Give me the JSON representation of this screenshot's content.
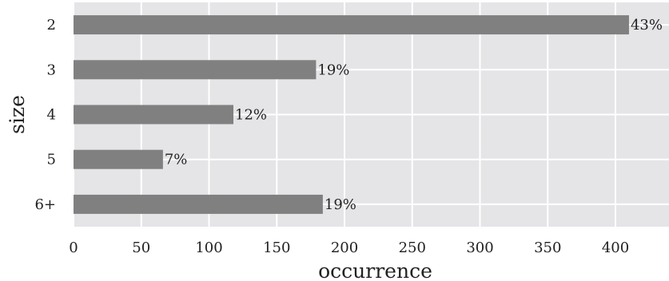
{
  "chart_data": {
    "type": "bar",
    "orientation": "horizontal",
    "categories": [
      "2",
      "3",
      "4",
      "5",
      "6+"
    ],
    "values": [
      410,
      179,
      118,
      66,
      184
    ],
    "data_labels": [
      "43%",
      "19%",
      "12%",
      "7%",
      "19%"
    ],
    "xlabel": "occurrence",
    "ylabel": "size",
    "xlim": [
      0,
      410
    ],
    "xticks": [
      0,
      50,
      100,
      150,
      200,
      250,
      300,
      350,
      400
    ],
    "grid": true,
    "colors": {
      "bar": "#808080",
      "plot_background": "#e5e5e8",
      "grid": "#ffffff"
    }
  }
}
